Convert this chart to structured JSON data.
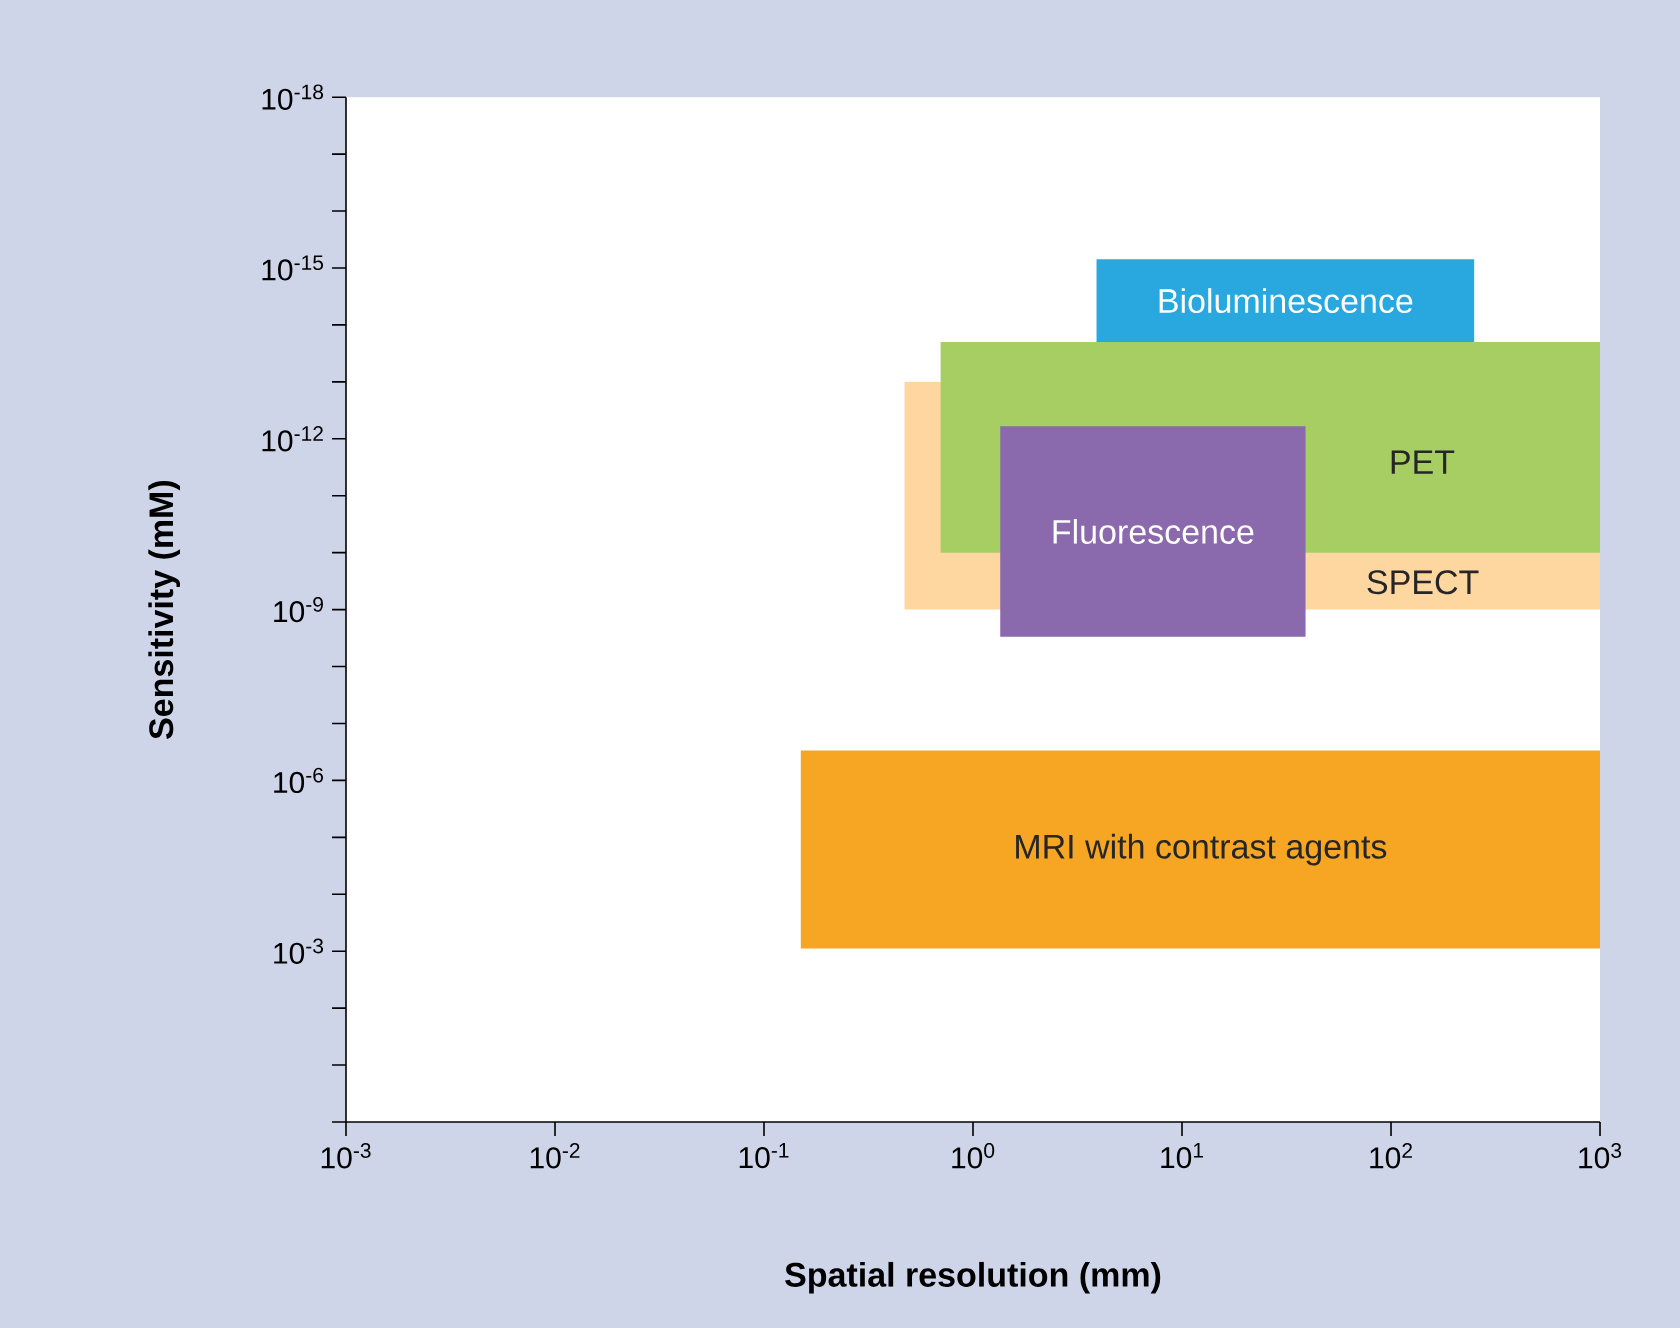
{
  "chart_data": {
    "type": "area",
    "xlabel": "Spatial resolution (mm)",
    "ylabel": "Sensitivity (mM)",
    "log": "xy",
    "xlim": [
      0.001,
      1000
    ],
    "ylim": [
      1,
      1e-18
    ],
    "xticks": [
      {
        "value": 0.001,
        "label": "10$^{-3}$"
      },
      {
        "value": 0.01,
        "label": "10$^{-2}$"
      },
      {
        "value": 0.1,
        "label": "10$^{-1}$"
      },
      {
        "value": 1,
        "label": "10$^{0}$"
      },
      {
        "value": 10,
        "label": "10$^{1}$"
      },
      {
        "value": 100,
        "label": "10$^{2}$"
      },
      {
        "value": 1000,
        "label": "10$^{3}$"
      }
    ],
    "yticks": [
      {
        "value": 1e-18,
        "label": "10$^{-18}$"
      },
      {
        "value": 1e-17,
        "label": null
      },
      {
        "value": 1e-16,
        "label": null
      },
      {
        "value": 1e-15,
        "label": "10$^{-15}$"
      },
      {
        "value": 1e-14,
        "label": null
      },
      {
        "value": 1e-13,
        "label": null
      },
      {
        "value": 1e-12,
        "label": "10$^{-12}$"
      },
      {
        "value": 1e-11,
        "label": null
      },
      {
        "value": 1e-10,
        "label": null
      },
      {
        "value": 1e-09,
        "label": "10$^{-9}$"
      },
      {
        "value": 1e-08,
        "label": null
      },
      {
        "value": 1e-07,
        "label": null
      },
      {
        "value": 1e-06,
        "label": "10$^{-6}$"
      },
      {
        "value": 1e-05,
        "label": null
      },
      {
        "value": 0.0001,
        "label": null
      },
      {
        "value": 0.001,
        "label": "10$^{-3}$"
      },
      {
        "value": 0.01,
        "label": null
      },
      {
        "value": 0.1,
        "label": null
      },
      {
        "value": 1,
        "label": null
      }
    ],
    "series": [
      {
        "name": "SPECT",
        "color": "#fdd6a0",
        "x": [
          0.47,
          1000,
          1000,
          0.47
        ],
        "values": [
          1e-13,
          1e-13,
          1e-09,
          1e-09
        ]
      },
      {
        "name": "PET",
        "color": "#a6ce63",
        "x": [
          0.7,
          1000,
          1000,
          0.7
        ],
        "values": [
          2e-14,
          2e-14,
          1e-10,
          1e-10
        ]
      },
      {
        "name": "Fluorescence",
        "color": "#8a69ad",
        "x": [
          1.35,
          39,
          39,
          1.35
        ],
        "values": [
          6e-13,
          6e-13,
          3e-09,
          3e-09
        ]
      },
      {
        "name": "Bioluminescence",
        "color": "#29a8e0",
        "x": [
          3.9,
          250,
          250,
          3.9
        ],
        "values": [
          7e-16,
          7e-16,
          2e-14,
          2e-14
        ]
      },
      {
        "name": "MRI with contrast agents",
        "color": "#f6a623",
        "x": [
          0.15,
          1000,
          1000,
          0.15
        ],
        "values": [
          3e-07,
          3e-07,
          0.0009,
          0.0009
        ]
      }
    ]
  }
}
